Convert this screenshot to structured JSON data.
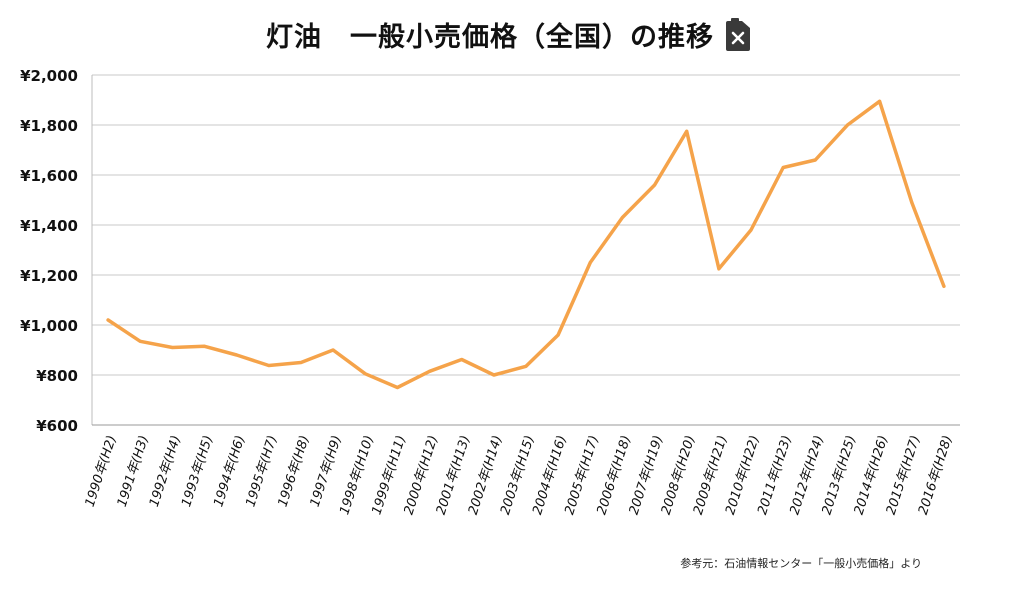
{
  "chart_data": {
    "type": "line",
    "title": "灯油　一般小売価格（全国）の推移",
    "title_icon": "fuel-can-icon",
    "xlabel": "",
    "ylabel": "",
    "categories": [
      "1990年(H2)",
      "1991年(H3)",
      "1992年(H4)",
      "1993年(H5)",
      "1994年(H6)",
      "1995年(H7)",
      "1996年(H8)",
      "1997年(H9)",
      "1998年(H10)",
      "1999年(H11)",
      "2000年(H12)",
      "2001年(H13)",
      "2002年(H14)",
      "2003年(H15)",
      "2004年(H16)",
      "2005年(H17)",
      "2006年(H18)",
      "2007年(H19)",
      "2008年(H20)",
      "2009年(H21)",
      "2010年(H22)",
      "2011年(H23)",
      "2012年(H24)",
      "2013年(H25)",
      "2014年(H26)",
      "2015年(H27)",
      "2016年(H28)"
    ],
    "series": [
      {
        "values": [
          1020,
          935,
          910,
          915,
          880,
          838,
          850,
          900,
          805,
          750,
          815,
          862,
          800,
          835,
          960,
          1250,
          1430,
          1560,
          1775,
          1225,
          1380,
          1630,
          1660,
          1800,
          1895,
          1490,
          1155
        ]
      }
    ],
    "y_ticks": [
      "¥600",
      "¥800",
      "¥1,000",
      "¥1,200",
      "¥1,400",
      "¥1,600",
      "¥1,800",
      "¥2,000"
    ],
    "ylim": [
      600,
      2000
    ],
    "grid": "horizontal",
    "legend": "none",
    "line_color": "#f5a34a",
    "grid_color": "#c8c8c8"
  },
  "source_note": "参考元：石油情報センター「一般小売価格」より"
}
